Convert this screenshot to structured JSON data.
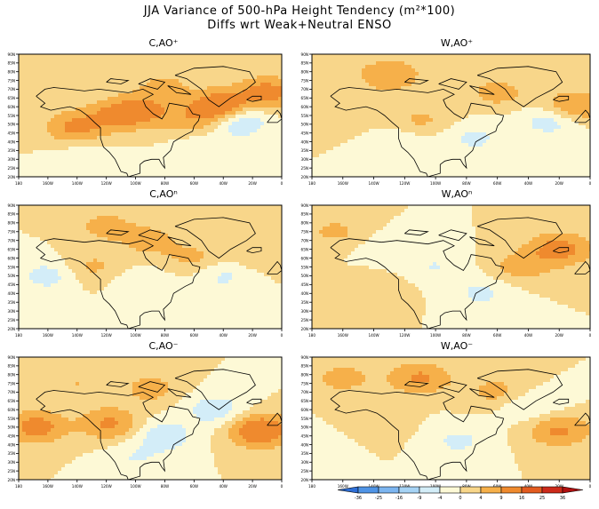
{
  "chart_data": {
    "type": "heatmap",
    "title": "JJA Variance of 500-hPa Height Tendency (m²*100)",
    "subtitle": "Diffs wrt Weak+Neutral ENSO",
    "x_ticks": [
      "180",
      "160W",
      "140W",
      "120W",
      "100W",
      "80W",
      "60W",
      "40W",
      "20W",
      "0"
    ],
    "y_ticks": [
      "90N",
      "85N",
      "80N",
      "75N",
      "70N",
      "65N",
      "60N",
      "55N",
      "50N",
      "45N",
      "40N",
      "35N",
      "30N",
      "25N",
      "20N"
    ],
    "xlim": [
      -180,
      0
    ],
    "ylim": [
      20,
      90
    ],
    "panels": [
      {
        "title": "C,AO⁺",
        "anomalies": [
          {
            "lon": -142,
            "lat": 48,
            "v": 10
          },
          {
            "lon": -115,
            "lat": 55,
            "v": 9
          },
          {
            "lon": -95,
            "lat": 58,
            "v": 10
          },
          {
            "lon": -43,
            "lat": 60,
            "v": 16
          },
          {
            "lon": -10,
            "lat": 68,
            "v": 12
          },
          {
            "lon": -62,
            "lat": 52,
            "v": 6
          },
          {
            "lon": -170,
            "lat": 68,
            "v": 4
          },
          {
            "lon": -80,
            "lat": 72,
            "v": 5
          },
          {
            "lon": -30,
            "lat": 52,
            "v": -10
          },
          {
            "lon": -55,
            "lat": 35,
            "v": -4
          },
          {
            "lon": -135,
            "lat": 32,
            "v": -3
          }
        ]
      },
      {
        "title": "W,AO⁺",
        "anomalies": [
          {
            "lon": -130,
            "lat": 78,
            "v": 9
          },
          {
            "lon": -60,
            "lat": 68,
            "v": 6
          },
          {
            "lon": -10,
            "lat": 60,
            "v": 10
          },
          {
            "lon": -110,
            "lat": 52,
            "v": 5
          },
          {
            "lon": -160,
            "lat": 55,
            "v": 4
          },
          {
            "lon": -25,
            "lat": 52,
            "v": -7
          },
          {
            "lon": -75,
            "lat": 42,
            "v": -5
          },
          {
            "lon": -125,
            "lat": 40,
            "v": -4
          }
        ]
      },
      {
        "title": "C,AOⁿ",
        "anomalies": [
          {
            "lon": -120,
            "lat": 78,
            "v": 6
          },
          {
            "lon": -90,
            "lat": 70,
            "v": 6
          },
          {
            "lon": -130,
            "lat": 55,
            "v": 5
          },
          {
            "lon": -60,
            "lat": 60,
            "v": 5
          },
          {
            "lon": -15,
            "lat": 62,
            "v": 4
          },
          {
            "lon": -160,
            "lat": 50,
            "v": -6
          },
          {
            "lon": -40,
            "lat": 50,
            "v": -5
          },
          {
            "lon": -95,
            "lat": 45,
            "v": -4
          }
        ]
      },
      {
        "title": "W,AOⁿ",
        "anomalies": [
          {
            "lon": -20,
            "lat": 65,
            "v": 12
          },
          {
            "lon": -45,
            "lat": 55,
            "v": 6
          },
          {
            "lon": -165,
            "lat": 75,
            "v": 5
          },
          {
            "lon": -140,
            "lat": 42,
            "v": 4
          },
          {
            "lon": -100,
            "lat": 55,
            "v": -4
          },
          {
            "lon": -70,
            "lat": 40,
            "v": -5
          },
          {
            "lon": -130,
            "lat": 65,
            "v": -3
          }
        ]
      },
      {
        "title": "C,AO⁻",
        "anomalies": [
          {
            "lon": -168,
            "lat": 50,
            "v": 12
          },
          {
            "lon": -118,
            "lat": 52,
            "v": 10
          },
          {
            "lon": -15,
            "lat": 48,
            "v": 16
          },
          {
            "lon": -90,
            "lat": 72,
            "v": 6
          },
          {
            "lon": -140,
            "lat": 75,
            "v": 4
          },
          {
            "lon": -45,
            "lat": 60,
            "v": -7
          },
          {
            "lon": -80,
            "lat": 45,
            "v": -7
          },
          {
            "lon": -100,
            "lat": 32,
            "v": -4
          }
        ]
      },
      {
        "title": "W,AO⁻",
        "anomalies": [
          {
            "lon": -110,
            "lat": 78,
            "v": 10
          },
          {
            "lon": -20,
            "lat": 48,
            "v": 10
          },
          {
            "lon": -60,
            "lat": 70,
            "v": 6
          },
          {
            "lon": -160,
            "lat": 78,
            "v": 6
          },
          {
            "lon": -140,
            "lat": 52,
            "v": 4
          },
          {
            "lon": -40,
            "lat": 62,
            "v": -5
          },
          {
            "lon": -85,
            "lat": 42,
            "v": -5
          },
          {
            "lon": -175,
            "lat": 40,
            "v": -3
          }
        ]
      }
    ],
    "legend": {
      "levels": [
        "-36",
        "-25",
        "-16",
        "-9",
        "-4",
        "0",
        "4",
        "9",
        "16",
        "25",
        "36"
      ],
      "colors": [
        "#2d6ed6",
        "#4f94e6",
        "#7cb5f0",
        "#a6d3f5",
        "#d3edf8",
        "#fdf9d6",
        "#f8d68a",
        "#f6b04a",
        "#ef8a2e",
        "#e35b1f",
        "#cc2a1a",
        "#b01010"
      ]
    }
  }
}
